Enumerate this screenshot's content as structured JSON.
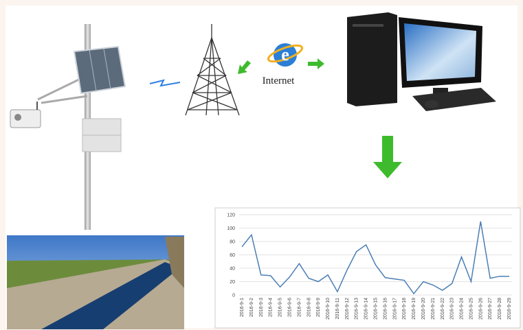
{
  "labels": {
    "internet": "Internet"
  },
  "chart_data": {
    "type": "line",
    "categories": [
      "2016-9-1",
      "2016-9-2",
      "2016-9-3",
      "2016-9-4",
      "2016-9-5",
      "2016-9-6",
      "2016-9-7",
      "2016-9-8",
      "2016-9-9",
      "2016-9-10",
      "2016-9-11",
      "2016-9-12",
      "2016-9-13",
      "2016-9-14",
      "2016-9-15",
      "2016-9-16",
      "2016-9-17",
      "2016-9-18",
      "2016-9-19",
      "2016-9-20",
      "2016-9-21",
      "2016-9-22",
      "2016-9-23",
      "2016-9-24",
      "2016-9-25",
      "2016-9-26",
      "2016-9-27",
      "2016-9-28",
      "2016-9-29"
    ],
    "values": [
      72,
      90,
      30,
      29,
      12,
      27,
      47,
      25,
      20,
      30,
      5,
      37,
      65,
      75,
      45,
      26,
      24,
      22,
      2,
      20,
      15,
      7,
      17,
      57,
      20,
      110,
      25,
      28,
      28
    ],
    "color": "#4a7eb5",
    "ylim": [
      0,
      120
    ],
    "yticks": [
      0,
      20,
      40,
      60,
      80,
      100,
      120
    ],
    "grid": true
  }
}
